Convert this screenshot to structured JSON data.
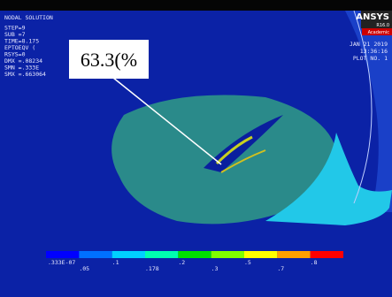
{
  "legend_block": {
    "lines": [
      "NODAL SOLUTION",
      "STEP=9",
      "SUB =7",
      "TIME=8.175",
      "EPTOEQV (",
      "RSYS=0",
      "DMX =.08234",
      "SMN =.333E",
      "SMX =.663064"
    ]
  },
  "logo": {
    "name": "ANSYS",
    "version": "R16.0",
    "edition": "Academic"
  },
  "plot_info": {
    "date": "JAN 21 2019",
    "time": "13:36:16",
    "plot": "PLOT NO.  1"
  },
  "callout": {
    "text": "63.3(%"
  },
  "colorbar": {
    "labels": [
      ".333E-07",
      ".05",
      ".1",
      ".178",
      ".2",
      ".3",
      ".5",
      ".7",
      ".8"
    ]
  }
}
